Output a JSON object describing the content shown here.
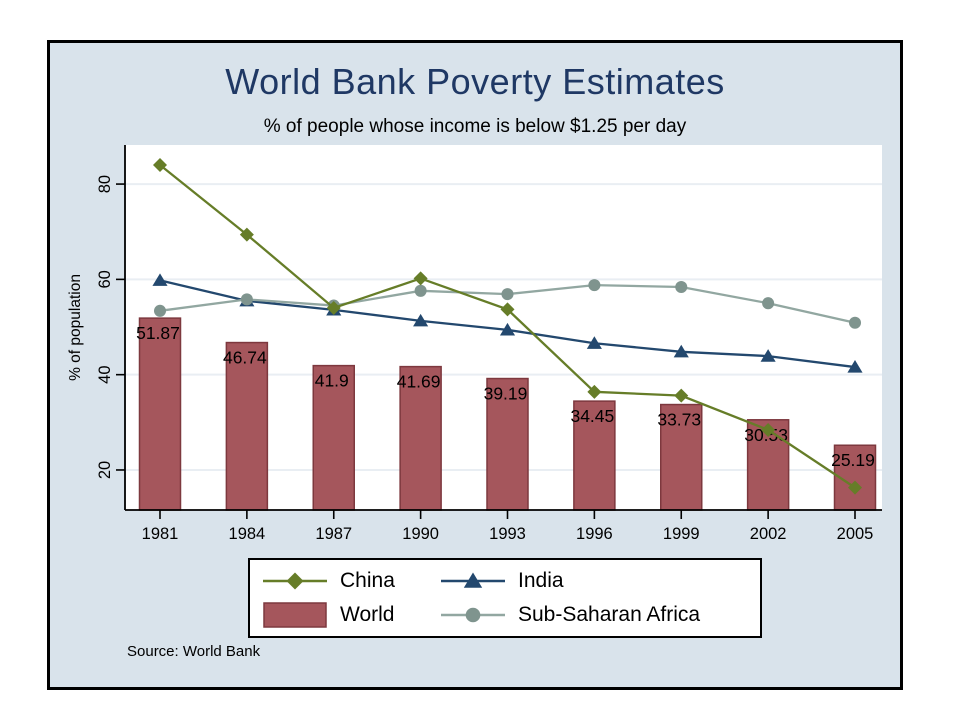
{
  "window": {
    "background": "#ffffff",
    "slide_background": "#d9e3eb",
    "slide_border_color": "#000000"
  },
  "chart_data": {
    "type": "bar+line",
    "title": "World Bank Poverty Estimates",
    "subtitle": "% of people whose income is below $1.25 per day",
    "source_note": "Source: World Bank",
    "ylabel": "% of population",
    "xlabel": "",
    "categories": [
      "1981",
      "1984",
      "1987",
      "1990",
      "1993",
      "1996",
      "1999",
      "2002",
      "2005"
    ],
    "yticks": [
      20,
      40,
      60,
      80
    ],
    "ylim": [
      11.6,
      88.2
    ],
    "grid": true,
    "grid_color": "#e9eef3",
    "axis_color": "#000000",
    "plot_background": "#ffffff",
    "title_color": "#1f3864",
    "legend_position": "below-center",
    "series": [
      {
        "name": "China",
        "type": "line",
        "marker": "diamond",
        "color": "#667d28",
        "marker_color": "#667d28",
        "values": [
          84.0,
          69.4,
          54.0,
          60.2,
          53.7,
          36.4,
          35.6,
          28.4,
          16.3
        ]
      },
      {
        "name": "India",
        "type": "line",
        "marker": "triangle",
        "color": "#23486e",
        "marker_color": "#23486e",
        "values": [
          59.8,
          55.5,
          53.6,
          51.3,
          49.4,
          46.6,
          44.8,
          43.9,
          41.6
        ]
      },
      {
        "name": "World",
        "type": "bar",
        "color": "#a5565c",
        "border": "#7d383e",
        "values": [
          51.87,
          46.74,
          41.9,
          41.69,
          39.19,
          34.45,
          33.73,
          30.53,
          25.19
        ],
        "labels": [
          "51.87",
          "46.74",
          "41.9",
          "41.69",
          "39.19",
          "34.45",
          "33.73",
          "30.53",
          "25.19"
        ]
      },
      {
        "name": "Sub-Saharan Africa",
        "type": "line",
        "marker": "circle",
        "color": "#92a7a1",
        "marker_color": "#7f948e",
        "values": [
          53.4,
          55.8,
          54.5,
          57.6,
          56.9,
          58.8,
          58.4,
          55.0,
          50.9
        ]
      }
    ]
  }
}
